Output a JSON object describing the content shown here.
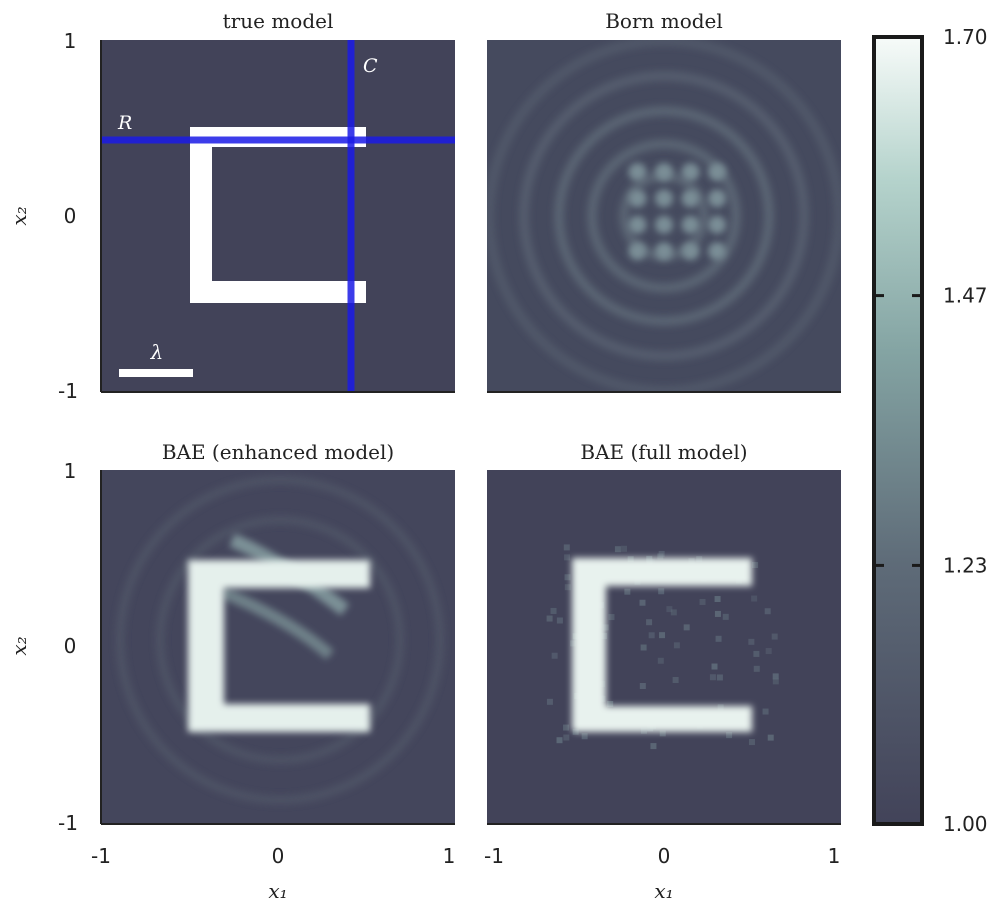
{
  "chart_data": [
    {
      "type": "heatmap",
      "title": "true model",
      "xlim": [
        -1,
        1
      ],
      "ylim": [
        -1,
        1
      ],
      "x_ticks": [],
      "y_ticks": [
        "-1",
        "0",
        "1"
      ],
      "xlabel": "",
      "ylabel": "x₂",
      "background_value": 1.0,
      "shapes": [
        {
          "kind": "bracket-C",
          "value": 1.7,
          "x_range": [
            -0.5,
            0.5
          ],
          "y_range": [
            -0.5,
            0.5
          ],
          "thickness": 0.12
        }
      ],
      "annotations": [
        {
          "text": "R",
          "kind": "horizontal-line",
          "at": 0.42,
          "color": "#1a1ae6"
        },
        {
          "text": "C",
          "kind": "vertical-line",
          "at": 0.42,
          "color": "#1a1ae6"
        },
        {
          "text": "λ",
          "kind": "scale-bar",
          "x_range": [
            -0.9,
            -0.5
          ],
          "y": -0.92,
          "color": "#ffffff"
        }
      ]
    },
    {
      "type": "heatmap",
      "title": "Born model",
      "xlim": [
        -1,
        1
      ],
      "ylim": [
        -1,
        1
      ],
      "x_ticks": [],
      "y_ticks": [],
      "xlabel": "",
      "ylabel": "",
      "background_value": 1.03,
      "features": [
        {
          "kind": "rings",
          "value": 1.13,
          "radii": [
            0.18,
            0.35,
            0.55,
            0.78,
            0.95
          ]
        },
        {
          "kind": "dots",
          "value": 1.22,
          "x": [
            -0.15,
            0.0,
            0.15,
            0.3
          ],
          "y": [
            -0.2,
            -0.05,
            0.1,
            0.25
          ]
        }
      ]
    },
    {
      "type": "heatmap",
      "title": "BAE (enhanced model)",
      "xlim": [
        -1,
        1
      ],
      "ylim": [
        -1,
        1
      ],
      "x_ticks": [
        "-1",
        "0",
        "1"
      ],
      "y_ticks": [
        "-1",
        "0",
        "1"
      ],
      "xlabel": "x₁",
      "ylabel": "x₂",
      "background_value": 1.02,
      "features": [
        {
          "kind": "bracket-C",
          "value": 1.66,
          "x_range": [
            -0.45,
            0.5
          ],
          "y_range": [
            -0.45,
            0.45
          ],
          "thickness": 0.14
        },
        {
          "kind": "streak",
          "value": 1.2,
          "from": [
            -0.3,
            0.25
          ],
          "to": [
            0.35,
            -0.1
          ]
        }
      ]
    },
    {
      "type": "heatmap",
      "title": "BAE (full model)",
      "xlim": [
        -1,
        1
      ],
      "ylim": [
        -1,
        1
      ],
      "x_ticks": [
        "-1",
        "0",
        "1"
      ],
      "y_ticks": [],
      "xlabel": "x₁",
      "ylabel": "",
      "background_value": 1.0,
      "features": [
        {
          "kind": "bracket-C",
          "value": 1.68,
          "x_range": [
            -0.45,
            0.5
          ],
          "y_range": [
            -0.45,
            0.45
          ],
          "thickness": 0.15
        }
      ]
    }
  ],
  "colorbar": {
    "min": 1.0,
    "max": 1.7,
    "ticks": [
      "1.00",
      "1.23",
      "1.47",
      "1.70"
    ],
    "tick_values": [
      1.0,
      1.23,
      1.47,
      1.7
    ],
    "colormap": [
      "#424359",
      "#5e6b78",
      "#84a4a3",
      "#b5d3cc",
      "#f7fbf9"
    ]
  }
}
